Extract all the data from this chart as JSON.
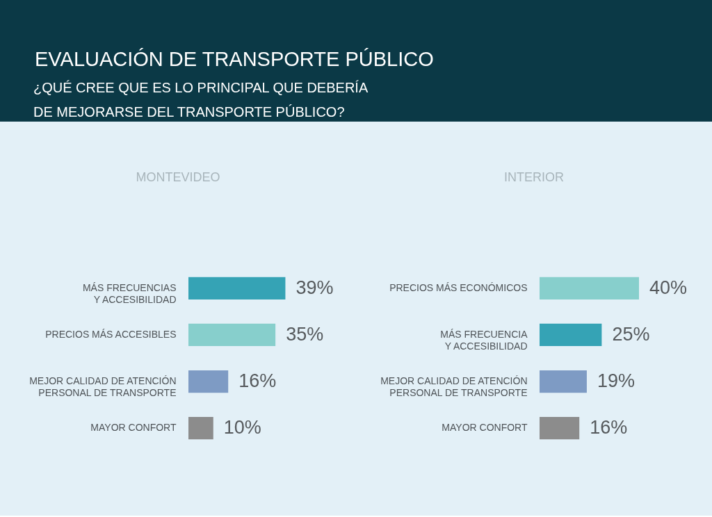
{
  "chart_data": [
    {
      "type": "other",
      "title": "EVALUACIÓN DE TRANSPORTE PÚBLICO",
      "subtitle": "¿QUÉ CREE QUE ES LO PRINCIPAL QUE DEBERÍA\nDE MEJORARSE DEL TRANSPORTE PÚBLICO?"
    },
    {
      "type": "bar",
      "orientation": "horizontal",
      "title": "MONTEVIDEO",
      "categories": [
        "MÁS FRECUENCIAS\nY ACCESIBILIDAD",
        "PRECIOS MÁS ACCESIBLES",
        "MEJOR CALIDAD DE ATENCIÓN\nPERSONAL DE TRANSPORTE",
        "MAYOR CONFORT"
      ],
      "values": [
        39,
        35,
        16,
        10
      ],
      "colors": [
        "#35a3b5",
        "#87cfcc",
        "#7e9bc4",
        "#8c8c8c"
      ],
      "value_labels": [
        "39%",
        "35%",
        "16%",
        "10%"
      ],
      "tick_labels": "y"
    },
    {
      "type": "bar",
      "orientation": "horizontal",
      "title": "INTERIOR",
      "categories": [
        "PRECIOS MÁS ECONÓMICOS",
        "MÁS FRECUENCIA\nY ACCESIBILIDAD",
        "MEJOR CALIDAD DE ATENCIÓN\nPERSONAL DE TRANSPORTE",
        "MAYOR CONFORT"
      ],
      "values": [
        40,
        25,
        19,
        16
      ],
      "colors": [
        "#87cfcc",
        "#35a3b5",
        "#7e9bc4",
        "#8c8c8c"
      ],
      "value_labels": [
        "40%",
        "25%",
        "19%",
        "16%"
      ],
      "tick_labels": "y"
    }
  ]
}
